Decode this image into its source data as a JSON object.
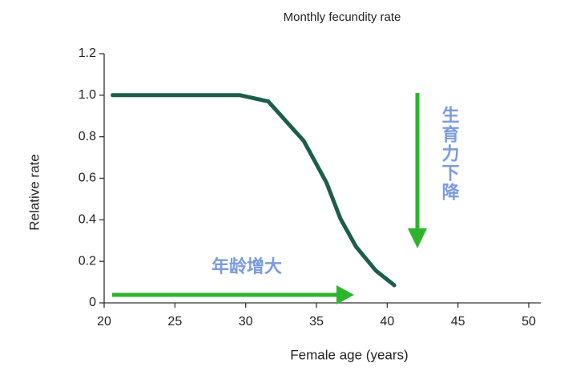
{
  "chart_data": {
    "type": "line",
    "title": "Monthly fecundity rate",
    "x_label": "Female age (years)",
    "y_label": "Relative rate",
    "x": [
      20.6,
      25,
      29.6,
      31.6,
      34.1,
      35.7,
      36.7,
      37.8,
      39.2,
      40.5
    ],
    "values": [
      1.0,
      1.0,
      1.0,
      0.97,
      0.78,
      0.58,
      0.405,
      0.27,
      0.155,
      0.085
    ],
    "color": "#1d5e4b",
    "xlim": [
      20,
      50
    ],
    "xticks": [
      20,
      25,
      30,
      35,
      40,
      45,
      50
    ],
    "ylim": [
      0,
      1.2
    ],
    "yticks": [
      0,
      0.2,
      0.4,
      0.6,
      0.8,
      {
        "value": 1,
        "label": "1.0"
      },
      1.2
    ],
    "grid": false,
    "annotations": [
      "年龄增大",
      "生育力下降"
    ]
  }
}
